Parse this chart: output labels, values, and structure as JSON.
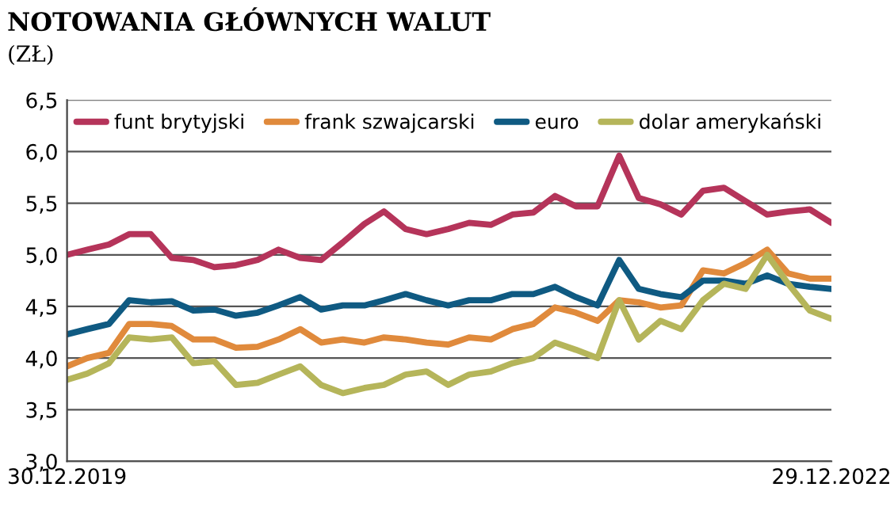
{
  "chart_data": {
    "type": "line",
    "title": "NOTOWANIA GŁÓWNYCH WALUT",
    "subtitle": "(ZŁ)",
    "x": [
      "2019-12-30",
      "2020-01-28",
      "2020-02-28",
      "2020-03-28",
      "2020-04-28",
      "2020-05-28",
      "2020-06-28",
      "2020-07-28",
      "2020-08-28",
      "2020-09-28",
      "2020-10-28",
      "2020-11-28",
      "2020-12-28",
      "2021-01-28",
      "2021-02-28",
      "2021-03-28",
      "2021-04-28",
      "2021-05-28",
      "2021-06-28",
      "2021-07-28",
      "2021-08-28",
      "2021-09-28",
      "2021-10-28",
      "2021-11-28",
      "2021-12-28",
      "2022-01-28",
      "2022-02-28",
      "2022-03-28",
      "2022-04-28",
      "2022-05-28",
      "2022-06-28",
      "2022-07-28",
      "2022-08-28",
      "2022-09-28",
      "2022-10-28",
      "2022-11-28",
      "2022-12-29"
    ],
    "series": [
      {
        "name": "funt brytyjski",
        "color": "#b5345a",
        "values": [
          5.0,
          5.05,
          5.1,
          5.2,
          5.2,
          4.97,
          4.95,
          4.88,
          4.9,
          4.95,
          5.05,
          4.97,
          4.95,
          5.12,
          5.3,
          5.42,
          5.25,
          5.2,
          5.25,
          5.31,
          5.29,
          5.39,
          5.41,
          5.57,
          5.47,
          5.47,
          5.96,
          5.55,
          5.49,
          5.39,
          5.62,
          5.65,
          5.52,
          5.39,
          5.42,
          5.44,
          5.31
        ]
      },
      {
        "name": "frank szwajcarski",
        "color": "#e08a3c",
        "values": [
          3.92,
          4.0,
          4.05,
          4.33,
          4.33,
          4.31,
          4.18,
          4.18,
          4.1,
          4.11,
          4.18,
          4.28,
          4.15,
          4.18,
          4.15,
          4.2,
          4.18,
          4.15,
          4.13,
          4.2,
          4.18,
          4.28,
          4.33,
          4.49,
          4.44,
          4.36,
          4.56,
          4.54,
          4.49,
          4.51,
          4.85,
          4.82,
          4.92,
          5.05,
          4.82,
          4.77,
          4.77
        ]
      },
      {
        "name": "euro",
        "color": "#0f5a82",
        "values": [
          4.23,
          4.28,
          4.33,
          4.56,
          4.54,
          4.55,
          4.46,
          4.47,
          4.41,
          4.44,
          4.51,
          4.59,
          4.47,
          4.51,
          4.51,
          4.56,
          4.62,
          4.56,
          4.51,
          4.56,
          4.56,
          4.62,
          4.62,
          4.69,
          4.59,
          4.51,
          4.95,
          4.67,
          4.62,
          4.59,
          4.75,
          4.75,
          4.72,
          4.8,
          4.72,
          4.69,
          4.67
        ]
      },
      {
        "name": "dolar amerykański",
        "color": "#b5b55a",
        "values": [
          3.79,
          3.85,
          3.95,
          4.2,
          4.18,
          4.2,
          3.95,
          3.97,
          3.74,
          3.76,
          3.84,
          3.92,
          3.74,
          3.66,
          3.71,
          3.74,
          3.84,
          3.87,
          3.74,
          3.84,
          3.87,
          3.95,
          4.0,
          4.15,
          4.08,
          4.0,
          4.56,
          4.18,
          4.36,
          4.28,
          4.56,
          4.72,
          4.67,
          5.0,
          4.72,
          4.46,
          4.38
        ]
      }
    ],
    "xlim": [
      "2019-12-30",
      "2022-12-29"
    ],
    "xticks": [
      {
        "value": "2019-12-30",
        "label": "30.12.2019"
      },
      {
        "value": "2022-12-29",
        "label": "29.12.2022"
      }
    ],
    "ylim": [
      3.0,
      6.5
    ],
    "yticks": [
      {
        "value": 3.0,
        "label": "3,0"
      },
      {
        "value": 3.5,
        "label": "3,5"
      },
      {
        "value": 4.0,
        "label": "4,0"
      },
      {
        "value": 4.5,
        "label": "4,5"
      },
      {
        "value": 5.0,
        "label": "5,0"
      },
      {
        "value": 5.5,
        "label": "5,5"
      },
      {
        "value": 6.0,
        "label": "6,0"
      },
      {
        "value": 6.5,
        "label": "6,5"
      }
    ],
    "grid": "y",
    "legend": "top",
    "marker": "none",
    "line_style": "solid"
  }
}
